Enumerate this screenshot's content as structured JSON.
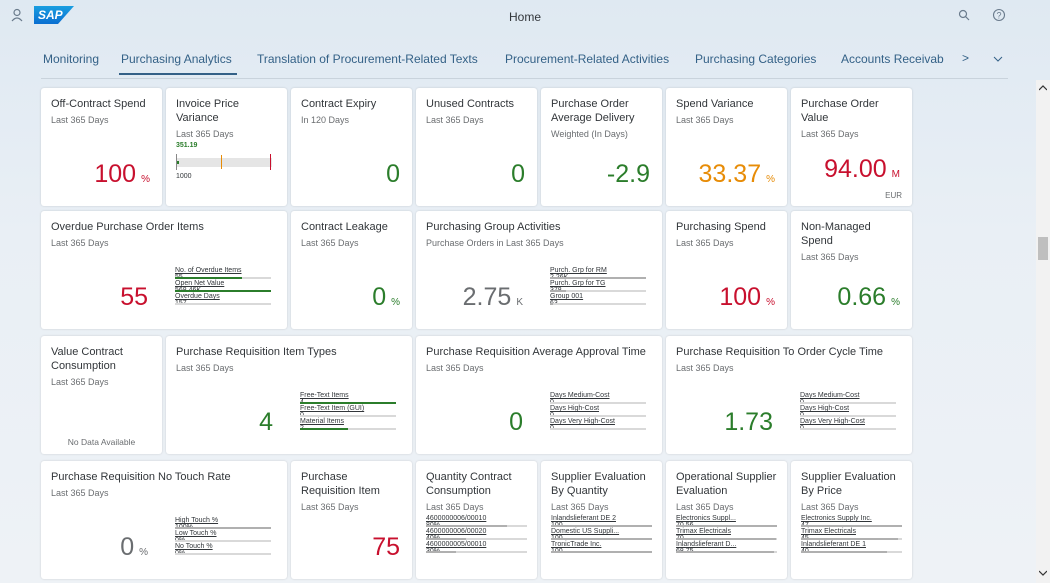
{
  "header": {
    "logo": "SAP",
    "title": "Home"
  },
  "tabs": [
    "Monitoring",
    "Purchasing Analytics",
    "Translation of Procurement-Related Texts",
    "Procurement-Related Activities",
    "Purchasing Categories",
    "Accounts Receivab"
  ],
  "selected_tab": 1,
  "tiles": [
    {
      "title": "Off-Contract Spend",
      "subtitle": "Last 365 Days",
      "value": "100",
      "unit": "%",
      "color": "#c8102e"
    },
    {
      "title": "Invoice Price Variance",
      "subtitle": "Last 365 Days",
      "chart": {
        "actual": "351.19",
        "target": "1000"
      }
    },
    {
      "title": "Contract Expiry",
      "subtitle": "In 120 Days",
      "value": "0",
      "color": "#2b7d2b"
    },
    {
      "title": "Unused Contracts",
      "subtitle": "Last 365 Days",
      "value": "0",
      "color": "#2b7d2b"
    },
    {
      "title": "Purchase Order Average Delivery",
      "subtitle": "Weighted (In Days)",
      "value": "-2.9",
      "color": "#2b7d2b"
    },
    {
      "title": "Spend Variance",
      "subtitle": "Last 365 Days",
      "value": "33.37",
      "unit": "%",
      "color": "#e78c07"
    },
    {
      "title": "Purchase Order Value",
      "subtitle": "Last 365 Days",
      "value": "94.00",
      "unit": "M",
      "color": "#c8102e",
      "footer": "EUR"
    },
    {
      "title": "Overdue Purchase Order Items",
      "subtitle": "Last 365 Days",
      "value": "55",
      "color": "#c8102e",
      "items": [
        {
          "label": "No. of Overdue Items",
          "value": "55"
        },
        {
          "label": "Open Net Value",
          "value": "568.46K"
        },
        {
          "label": "Overdue Days",
          "value": "157"
        }
      ]
    },
    {
      "title": "Contract Leakage",
      "subtitle": "Last 365 Days",
      "value": "0",
      "unit": "%",
      "color": "#2b7d2b"
    },
    {
      "title": "Purchasing Group Activities",
      "subtitle": "Purchase Orders in Last 365 Days",
      "value": "2.75",
      "unit": "K",
      "color": "#6a6d70",
      "items": [
        {
          "label": "Purch. Grp for RM",
          "value": "2.26K"
        },
        {
          "label": "Purch. Grp for TG",
          "value": "378"
        },
        {
          "label": "Group 001",
          "value": "63"
        }
      ]
    },
    {
      "title": "Purchasing Spend",
      "subtitle": "Last 365 Days",
      "value": "100",
      "unit": "%",
      "color": "#c8102e"
    },
    {
      "title": "Non-Managed Spend",
      "subtitle": "Last 365 Days",
      "value": "0.66",
      "unit": "%",
      "color": "#2b7d2b"
    },
    {
      "title": "Value Contract Consumption",
      "subtitle": "Last 365 Days",
      "footer": "No Data Available"
    },
    {
      "title": "Purchase Requisition Item Types",
      "subtitle": "Last 365 Days",
      "value": "4",
      "color": "#2b7d2b",
      "items": [
        {
          "label": "Free-Text Items",
          "value": "4"
        },
        {
          "label": "Free-Text Item (GUI)",
          "value": "0"
        },
        {
          "label": "Material Items",
          "value": "2"
        }
      ]
    },
    {
      "title": "Purchase Requisition Average Approval Time",
      "subtitle": "Last 365 Days",
      "value": "0",
      "color": "#2b7d2b",
      "items": [
        {
          "label": "Days Medium-Cost",
          "value": "0"
        },
        {
          "label": "Days High-Cost",
          "value": "0"
        },
        {
          "label": "Days Very High-Cost",
          "value": "0"
        }
      ]
    },
    {
      "title": "Purchase Requisition To Order Cycle Time",
      "subtitle": "Last 365 Days",
      "value": "1.73",
      "color": "#2b7d2b",
      "items": [
        {
          "label": "Days Medium-Cost",
          "value": "0"
        },
        {
          "label": "Days High-Cost",
          "value": "0"
        },
        {
          "label": "Days Very High-Cost",
          "value": "0"
        }
      ]
    },
    {
      "title": "Purchase Requisition No Touch Rate",
      "subtitle": "Last 365 Days",
      "value": "0",
      "unit": "%",
      "color": "#6a6d70",
      "items": [
        {
          "label": "High Touch %",
          "value": "100%"
        },
        {
          "label": "Low Touch %",
          "value": "0%"
        },
        {
          "label": "No Touch %",
          "value": "0%"
        }
      ]
    },
    {
      "title": "Purchase Requisition Item",
      "subtitle": "Last 365 Days",
      "value": "75",
      "color": "#c8102e"
    },
    {
      "title": "Quantity Contract Consumption",
      "subtitle": "Last 365 Days",
      "items": [
        {
          "label": "4600000006/00010",
          "value": "80%"
        },
        {
          "label": "4600000006/00020",
          "value": "40%"
        },
        {
          "label": "4600000005/00010",
          "value": "30%"
        }
      ]
    },
    {
      "title": "Supplier Evaluation By Quantity",
      "subtitle": "Last 365 Days",
      "items": [
        {
          "label": "Inlandslieferant DE 2",
          "value": "100"
        },
        {
          "label": "Domestic US Suppli...",
          "value": "100"
        },
        {
          "label": "TronicTrade Inc.",
          "value": "100"
        }
      ]
    },
    {
      "title": "Operational Supplier Evaluation",
      "subtitle": "Last 365 Days",
      "items": [
        {
          "label": "Electronics Suppl...",
          "value": "70.56"
        },
        {
          "label": "Trimax Electricals",
          "value": "70"
        },
        {
          "label": "Inlandslieferant D...",
          "value": "68.75"
        }
      ]
    },
    {
      "title": "Supplier Evaluation By Price",
      "subtitle": "Last 365 Days",
      "items": [
        {
          "label": "Electronics Supply Inc.",
          "value": "47"
        },
        {
          "label": "Trimax Electricals",
          "value": "45"
        },
        {
          "label": "Inlandslieferant DE 1",
          "value": "40"
        }
      ]
    }
  ]
}
